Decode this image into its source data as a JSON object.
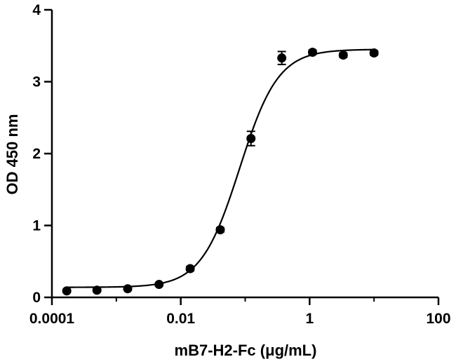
{
  "chart_data": {
    "type": "scatter",
    "xlabel": "mB7-H2-Fc (μg/mL)",
    "ylabel": "OD 450 nm",
    "xscale": "log",
    "xlim": [
      0.0001,
      100
    ],
    "ylim": [
      0,
      4
    ],
    "x_ticks": [
      0.0001,
      0.01,
      1,
      100
    ],
    "x_tick_labels": [
      "0.0001",
      "0.01",
      "1",
      "100"
    ],
    "y_ticks": [
      0,
      1,
      2,
      3,
      4
    ],
    "y_tick_labels": [
      "0",
      "1",
      "2",
      "3",
      "4"
    ],
    "grid": false,
    "legend": "none",
    "series": [
      {
        "points": [
          {
            "x": 0.00017,
            "y": 0.09,
            "err": 0.02
          },
          {
            "x": 0.0005,
            "y": 0.1,
            "err": 0.02
          },
          {
            "x": 0.0015,
            "y": 0.12,
            "err": 0.02
          },
          {
            "x": 0.0046,
            "y": 0.18,
            "err": 0.02
          },
          {
            "x": 0.014,
            "y": 0.4,
            "err": 0.03
          },
          {
            "x": 0.041,
            "y": 0.94,
            "err": 0.03
          },
          {
            "x": 0.123,
            "y": 2.21,
            "err": 0.1
          },
          {
            "x": 0.37,
            "y": 3.33,
            "err": 0.09
          },
          {
            "x": 1.11,
            "y": 3.41,
            "err": 0.03
          },
          {
            "x": 3.33,
            "y": 3.37,
            "err": 0.03
          },
          {
            "x": 10,
            "y": 3.4,
            "err": 0.03
          }
        ],
        "fit": {
          "model": "4PL",
          "bottom": 0.14,
          "top": 3.45,
          "ec50": 0.082,
          "hill": 1.45,
          "x_range": [
            0.00017,
            10
          ]
        }
      }
    ]
  }
}
